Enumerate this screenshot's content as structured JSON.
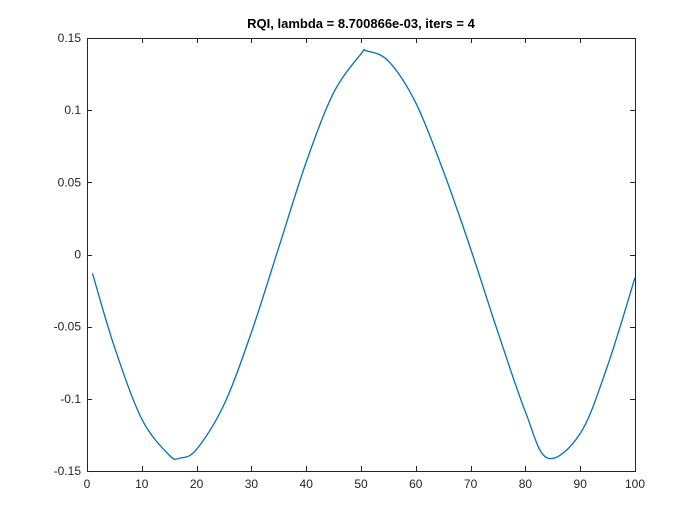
{
  "chart_data": {
    "type": "line",
    "title": "RQI, lambda = 8.700866e-03, iters = 4",
    "xlabel": "",
    "ylabel": "",
    "xlim": [
      0,
      100
    ],
    "ylim": [
      -0.15,
      0.15
    ],
    "x_ticks": [
      0,
      10,
      20,
      30,
      40,
      50,
      60,
      70,
      80,
      90,
      100
    ],
    "x_tick_labels": [
      "0",
      "10",
      "20",
      "30",
      "40",
      "50",
      "60",
      "70",
      "80",
      "90",
      "100"
    ],
    "y_ticks": [
      0.15,
      0.1,
      0.05,
      0,
      -0.05,
      -0.1,
      -0.15
    ],
    "y_tick_labels": [
      "0.15",
      "0.1",
      "0.05",
      "0",
      "-0.05",
      "-0.1",
      "-0.15"
    ],
    "grid": false,
    "legend": "none",
    "series": [
      {
        "color": "#0072BD",
        "x": [
          1,
          5,
          10,
          15,
          17,
          20,
          25,
          30,
          35,
          40,
          45,
          50,
          51,
          55,
          60,
          65,
          70,
          75,
          80,
          84,
          90,
          95,
          100
        ],
        "y": [
          -0.013,
          -0.064,
          -0.114,
          -0.139,
          -0.141,
          -0.135,
          -0.104,
          -0.054,
          0.005,
          0.064,
          0.112,
          0.139,
          0.141,
          0.134,
          0.105,
          0.058,
          0.004,
          -0.054,
          -0.109,
          -0.141,
          -0.124,
          -0.077,
          -0.016
        ]
      }
    ]
  }
}
